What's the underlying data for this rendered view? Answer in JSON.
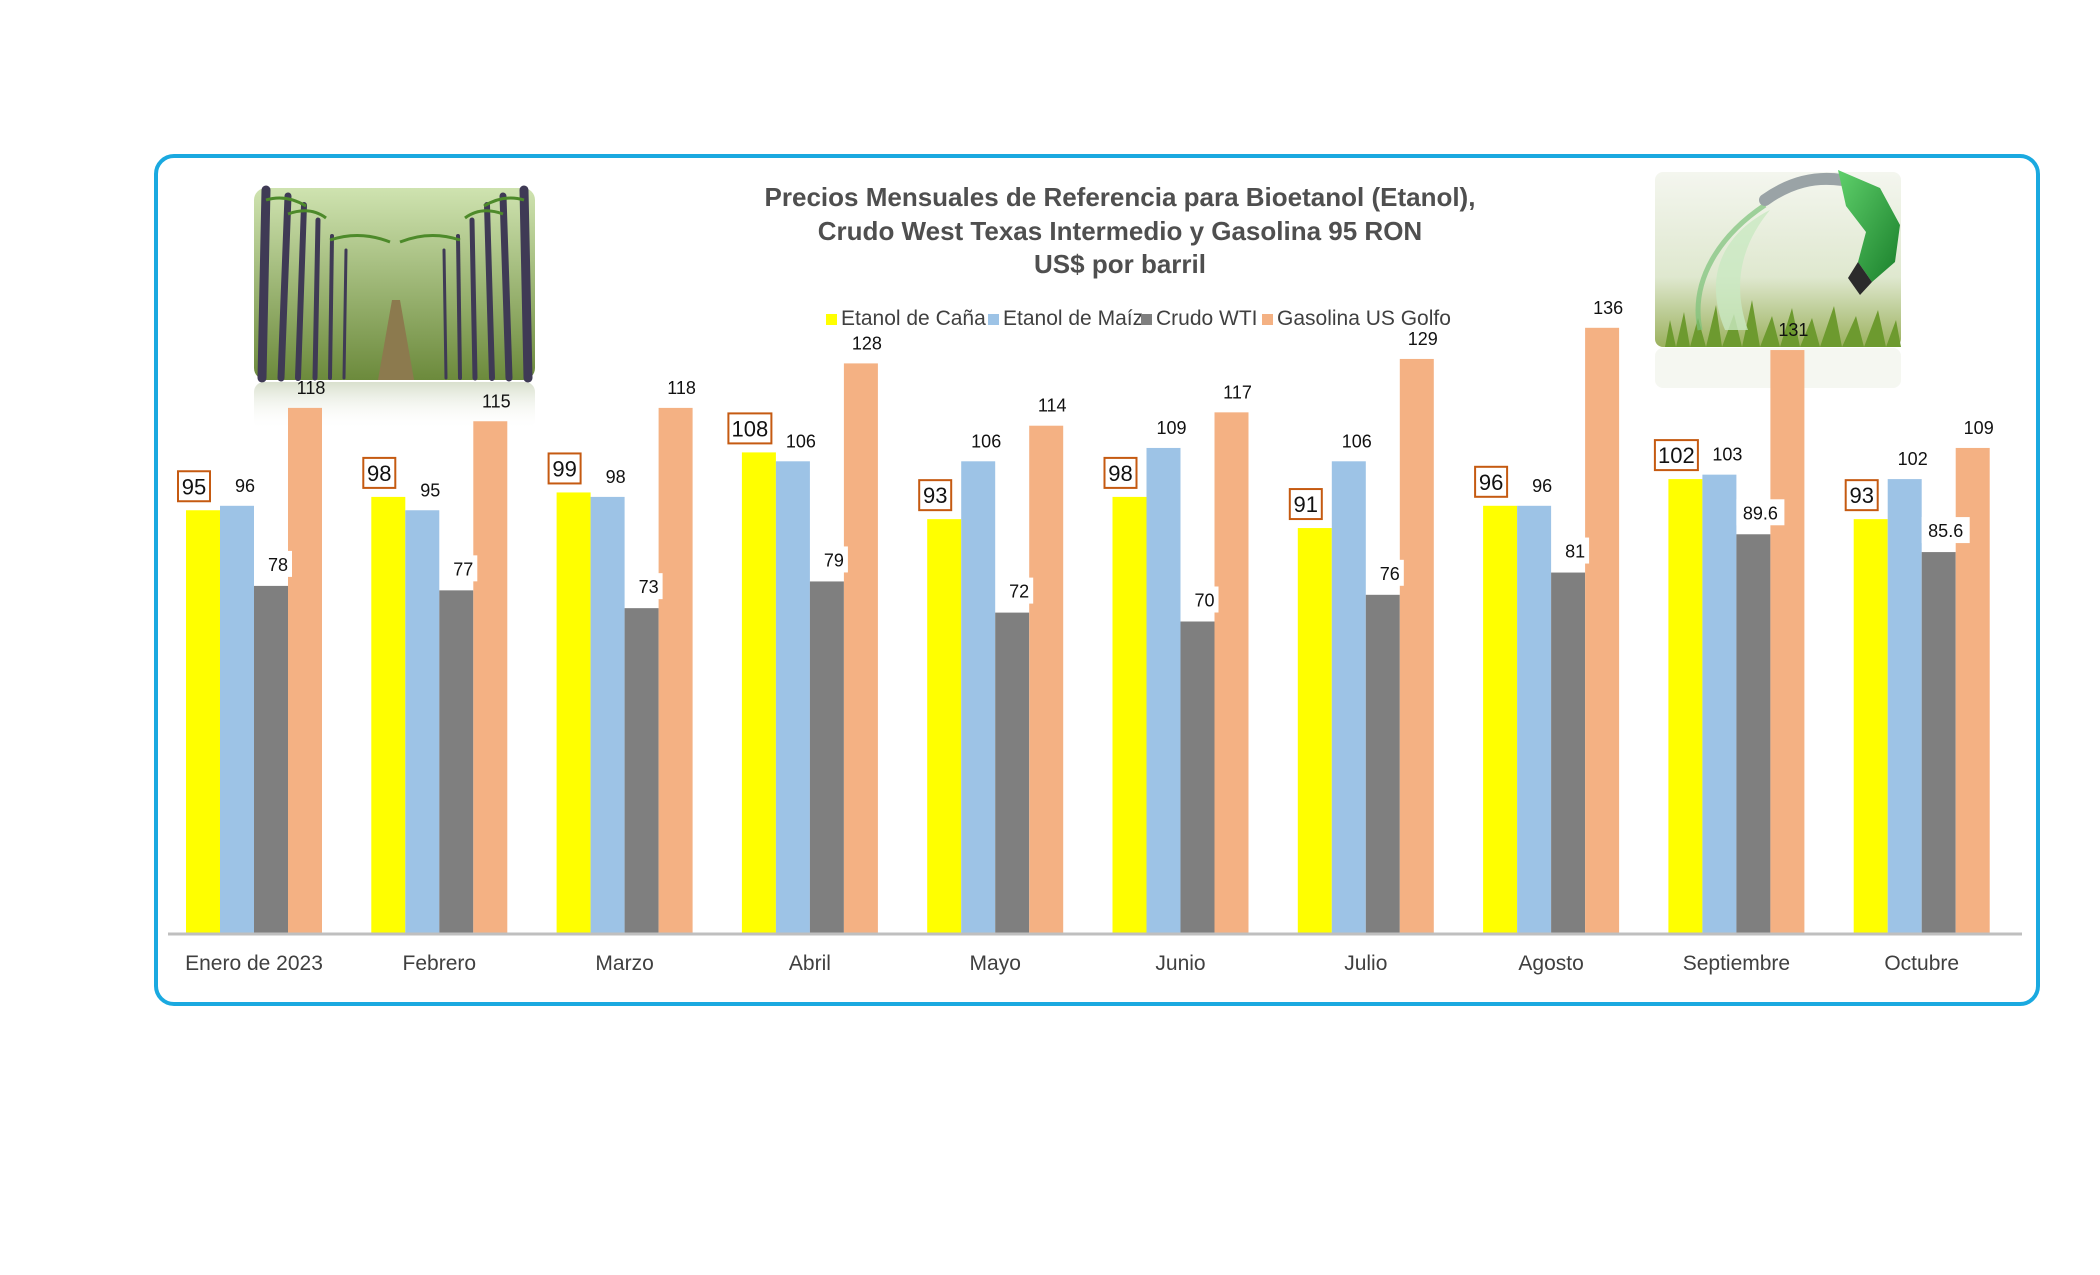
{
  "chart_data": {
    "type": "bar",
    "title": [
      "Precios Mensuales de Referencia para Bioetanol (Etanol),",
      "Crudo West Texas Intermedio y Gasolina 95 RON",
      "US$ por barril"
    ],
    "categories": [
      "Enero de 2023",
      "Febrero",
      "Marzo",
      "Abril",
      "Mayo",
      "Junio",
      "Julio",
      "Agosto",
      "Septiembre",
      "Octubre"
    ],
    "series": [
      {
        "name": "Etanol de Caña",
        "color": "#ffff00",
        "values": [
          95,
          98,
          99,
          108,
          93,
          98,
          91,
          96,
          102,
          93
        ],
        "labels": [
          "95",
          "98",
          "99",
          "108",
          "93",
          "98",
          "91",
          "96",
          "102",
          "93"
        ]
      },
      {
        "name": "Etanol de Maíz",
        "color": "#9dc3e6",
        "values": [
          96,
          95,
          98,
          106,
          106,
          109,
          106,
          96,
          103,
          102
        ],
        "labels": [
          "96",
          "95",
          "98",
          "106",
          "106",
          "109",
          "106",
          "96",
          "103",
          "102"
        ]
      },
      {
        "name": "Crudo WTI",
        "color": "#7f7f7f",
        "values": [
          78,
          77,
          73,
          79,
          72,
          70,
          76,
          81,
          89.6,
          85.6
        ],
        "labels": [
          "78",
          "77",
          "73",
          "79",
          "72",
          "70",
          "76",
          "81",
          "89.6",
          "85.6"
        ]
      },
      {
        "name": "Gasolina US Golfo",
        "color": "#f4b183",
        "values": [
          118,
          115,
          118,
          128,
          114,
          117,
          129,
          136,
          131,
          109
        ],
        "labels": [
          "118",
          "115",
          "118",
          "128",
          "114",
          "117",
          "129",
          "136",
          "131",
          "109"
        ]
      }
    ],
    "ylim": [
      0,
      136
    ],
    "grid": false,
    "legend_position": "top",
    "label_box_color": "#c55a11",
    "frame_color": "#1aa9e0"
  },
  "images": [
    {
      "name": "sugarcane-photo"
    },
    {
      "name": "fuel-nozzle-photo"
    }
  ]
}
